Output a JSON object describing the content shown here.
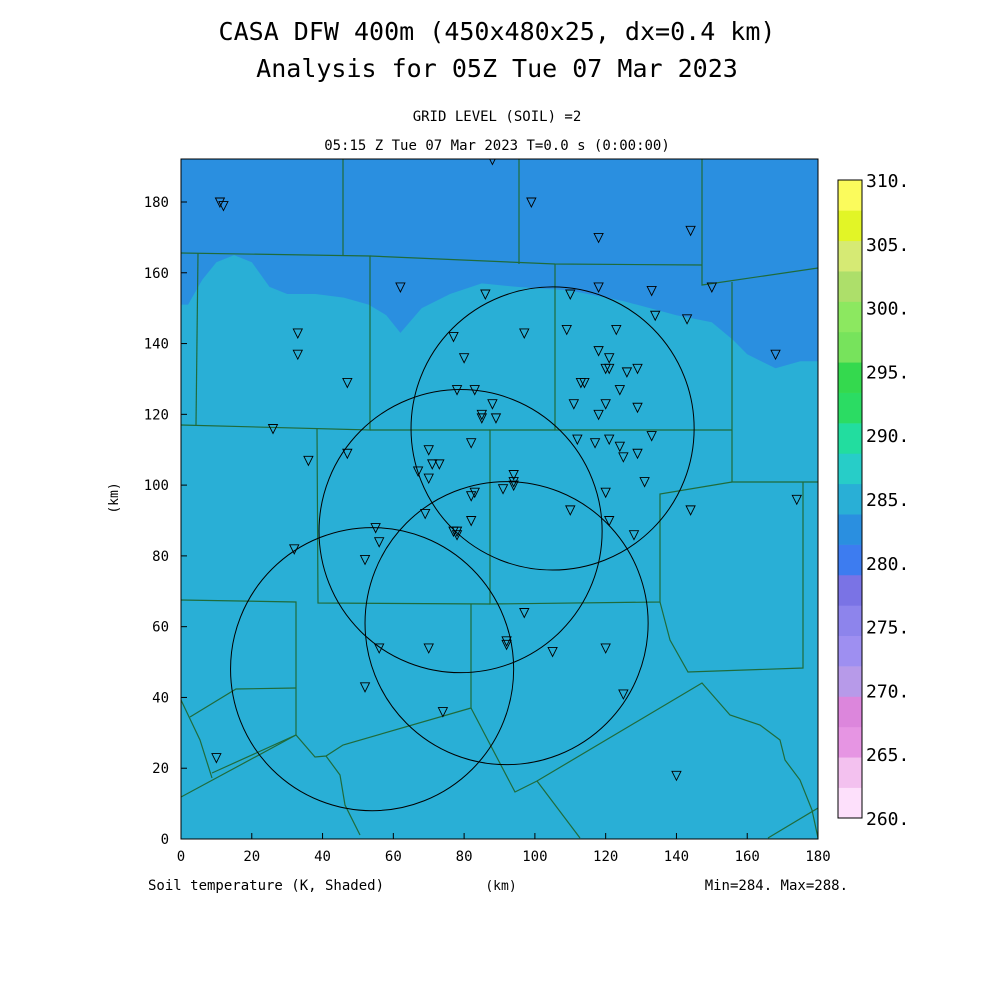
{
  "titles": {
    "line1": "CASA DFW 400m (450x480x25, dx=0.4 km)",
    "line2": "Analysis for 05Z Tue 07 Mar 2023",
    "grid_level": "GRID LEVEL (SOIL) =2",
    "valid_time": "05:15 Z Tue 07 Mar 2023   T=0.0 s (0:00:00)"
  },
  "footer": {
    "field_label": "Soil temperature (K, Shaded)",
    "x_unit": "(km)",
    "minmax": "Min=284. Max=288."
  },
  "colors": {
    "level_280_285": "#2a8fe0",
    "level_285_290": "#29afd6",
    "boundary_line": "#1f6b3a",
    "symbols": "#000000"
  },
  "chart_data": {
    "type": "heatmap",
    "ylabel": "(km)",
    "xlabel": "(km)",
    "xlim": [
      0,
      180
    ],
    "ylim": [
      0,
      192
    ],
    "xticks": [
      0,
      20,
      40,
      60,
      80,
      100,
      120,
      140,
      160,
      180
    ],
    "yticks": [
      0,
      20,
      40,
      60,
      80,
      100,
      120,
      140,
      160,
      180
    ],
    "colorbar": {
      "levels": [
        260,
        265,
        270,
        275,
        280,
        285,
        290,
        295,
        300,
        305,
        310
      ],
      "labels": [
        "260.",
        "265.",
        "270.",
        "275.",
        "280.",
        "285.",
        "290.",
        "295.",
        "300.",
        "305.",
        "310."
      ],
      "colors": [
        "#fde0fb",
        "#f3c1ef",
        "#e695e3",
        "#dc86dc",
        "#b79ae9",
        "#9e8ff1",
        "#8d84ec",
        "#7a73e5",
        "#3d7cf0",
        "#2a8fe0",
        "#29afd6",
        "#27cdc8",
        "#22dd9f",
        "#2bdc63",
        "#34d94e",
        "#77e35c",
        "#8ce860",
        "#addf6a",
        "#d6ea74",
        "#e2f526",
        "#fbfb5c"
      ]
    },
    "cold_region_boundary": [
      [
        0,
        151
      ],
      [
        2,
        151
      ],
      [
        6,
        158
      ],
      [
        10,
        163
      ],
      [
        15,
        165
      ],
      [
        20,
        163
      ],
      [
        25,
        156
      ],
      [
        30,
        154
      ],
      [
        38,
        154
      ],
      [
        46,
        153
      ],
      [
        53,
        151
      ],
      [
        58,
        148
      ],
      [
        62,
        143
      ],
      [
        68,
        150
      ],
      [
        76,
        154
      ],
      [
        85,
        157
      ],
      [
        95,
        156
      ],
      [
        110,
        155
      ],
      [
        125,
        152
      ],
      [
        140,
        148
      ],
      [
        150,
        146
      ],
      [
        156,
        141
      ],
      [
        160,
        137
      ],
      [
        168,
        133
      ],
      [
        175,
        135
      ],
      [
        180,
        135
      ]
    ],
    "radar_rings": [
      {
        "center": [
          105,
          116
        ],
        "radius": 40
      },
      {
        "center": [
          79,
          87
        ],
        "radius": 40
      },
      {
        "center": [
          92,
          61
        ],
        "radius": 40
      },
      {
        "center": [
          54,
          48
        ],
        "radius": 40
      }
    ],
    "stations": [
      [
        11,
        180
      ],
      [
        12,
        179
      ],
      [
        88,
        192
      ],
      [
        99,
        180
      ],
      [
        118,
        170
      ],
      [
        144,
        172
      ],
      [
        62,
        156
      ],
      [
        86,
        154
      ],
      [
        110,
        154
      ],
      [
        118,
        156
      ],
      [
        133,
        155
      ],
      [
        150,
        156
      ],
      [
        33,
        143
      ],
      [
        33,
        137
      ],
      [
        77,
        142
      ],
      [
        97,
        143
      ],
      [
        109,
        144
      ],
      [
        123,
        144
      ],
      [
        134,
        148
      ],
      [
        143,
        147
      ],
      [
        168,
        137
      ],
      [
        80,
        136
      ],
      [
        118,
        138
      ],
      [
        121,
        136
      ],
      [
        120,
        133
      ],
      [
        121,
        133
      ],
      [
        126,
        132
      ],
      [
        129,
        133
      ],
      [
        47,
        129
      ],
      [
        78,
        127
      ],
      [
        83,
        127
      ],
      [
        113,
        129
      ],
      [
        114,
        129
      ],
      [
        124,
        127
      ],
      [
        88,
        123
      ],
      [
        111,
        123
      ],
      [
        120,
        123
      ],
      [
        129,
        122
      ],
      [
        85,
        120
      ],
      [
        85,
        119
      ],
      [
        89,
        119
      ],
      [
        118,
        120
      ],
      [
        26,
        116
      ],
      [
        82,
        112
      ],
      [
        112,
        113
      ],
      [
        117,
        112
      ],
      [
        121,
        113
      ],
      [
        133,
        114
      ],
      [
        47,
        109
      ],
      [
        70,
        110
      ],
      [
        124,
        111
      ],
      [
        125,
        108
      ],
      [
        129,
        109
      ],
      [
        36,
        107
      ],
      [
        71,
        106
      ],
      [
        73,
        106
      ],
      [
        67,
        104
      ],
      [
        94,
        103
      ],
      [
        70,
        102
      ],
      [
        94,
        101
      ],
      [
        94,
        100
      ],
      [
        131,
        101
      ],
      [
        83,
        98
      ],
      [
        82,
        97
      ],
      [
        91,
        99
      ],
      [
        120,
        98
      ],
      [
        174,
        96
      ],
      [
        110,
        93
      ],
      [
        144,
        93
      ],
      [
        69,
        92
      ],
      [
        82,
        90
      ],
      [
        121,
        90
      ],
      [
        55,
        88
      ],
      [
        78,
        87
      ],
      [
        77,
        87
      ],
      [
        78,
        86
      ],
      [
        56,
        84
      ],
      [
        128,
        86
      ],
      [
        32,
        82
      ],
      [
        52,
        79
      ],
      [
        97,
        64
      ],
      [
        92,
        56
      ],
      [
        92,
        55
      ],
      [
        56,
        54
      ],
      [
        70,
        54
      ],
      [
        105,
        53
      ],
      [
        120,
        54
      ],
      [
        52,
        43
      ],
      [
        125,
        41
      ],
      [
        74,
        36
      ],
      [
        10,
        23
      ],
      [
        140,
        18
      ]
    ],
    "stations_note": "inverted-triangle observation sites, x/y in km"
  }
}
